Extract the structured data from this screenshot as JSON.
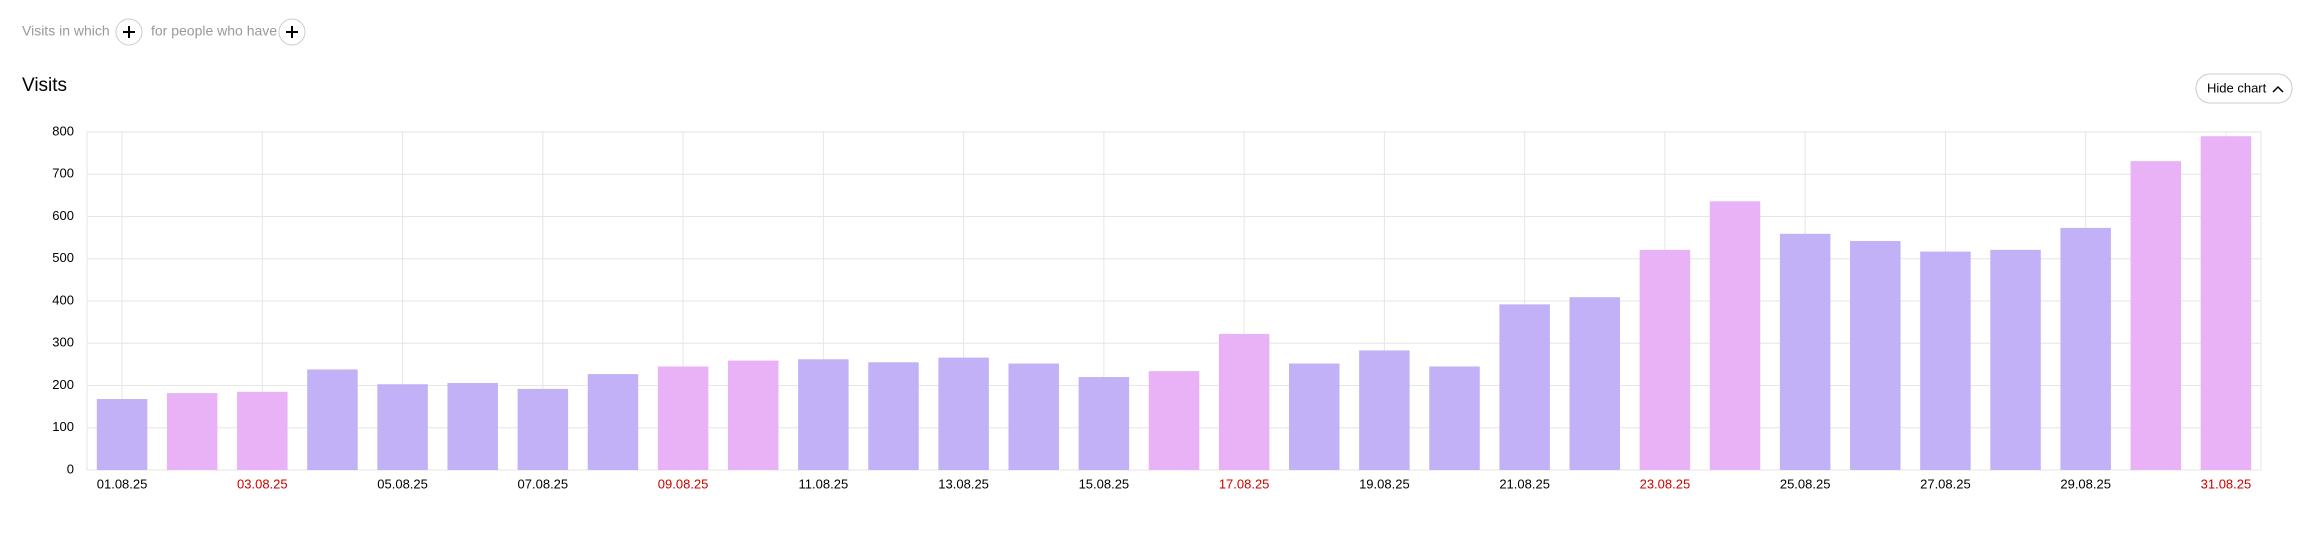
{
  "ui": {
    "filter_prefix": "Visits in which",
    "filter_middle": "for people who have",
    "hide_button": "Hide chart"
  },
  "chart_data": {
    "type": "bar",
    "title": "Visits",
    "categories": [
      "01.08.25",
      null,
      "03.08.25",
      null,
      "05.08.25",
      null,
      "07.08.25",
      null,
      "09.08.25",
      null,
      "11.08.25",
      null,
      "13.08.25",
      null,
      "15.08.25",
      null,
      "17.08.25",
      null,
      "19.08.25",
      null,
      "21.08.25",
      null,
      "23.08.25",
      null,
      "25.08.25",
      null,
      "27.08.25",
      null,
      "29.08.25",
      null,
      "31.08.25"
    ],
    "values": [
      168,
      182,
      185,
      238,
      203,
      206,
      192,
      227,
      245,
      259,
      262,
      255,
      266,
      252,
      220,
      234,
      322,
      252,
      283,
      245,
      392,
      409,
      521,
      636,
      559,
      542,
      517,
      521,
      573,
      731,
      790
    ],
    "colors": [
      "#c2b1f7",
      "#e9b2f7",
      "#e9b2f7",
      "#c2b1f7",
      "#c2b1f7",
      "#c2b1f7",
      "#c2b1f7",
      "#c2b1f7",
      "#e9b2f7",
      "#e9b2f7",
      "#c2b1f7",
      "#c2b1f7",
      "#c2b1f7",
      "#c2b1f7",
      "#c2b1f7",
      "#e9b2f7",
      "#e9b2f7",
      "#c2b1f7",
      "#c2b1f7",
      "#c2b1f7",
      "#c2b1f7",
      "#c2b1f7",
      "#e9b2f7",
      "#e9b2f7",
      "#c2b1f7",
      "#c2b1f7",
      "#c2b1f7",
      "#c2b1f7",
      "#c2b1f7",
      "#e9b2f7",
      "#e9b2f7"
    ],
    "tick_label_colors": [
      "#000000",
      null,
      "#cc0000",
      null,
      "#000000",
      null,
      "#000000",
      null,
      "#cc0000",
      null,
      "#000000",
      null,
      "#000000",
      null,
      "#000000",
      null,
      "#cc0000",
      null,
      "#000000",
      null,
      "#000000",
      null,
      "#cc0000",
      null,
      "#000000",
      null,
      "#000000",
      null,
      "#000000",
      null,
      "#cc0000"
    ],
    "ylim": [
      0,
      800
    ],
    "yticks": [
      0,
      100,
      200,
      300,
      400,
      500,
      600,
      700,
      800
    ],
    "grid": true
  }
}
